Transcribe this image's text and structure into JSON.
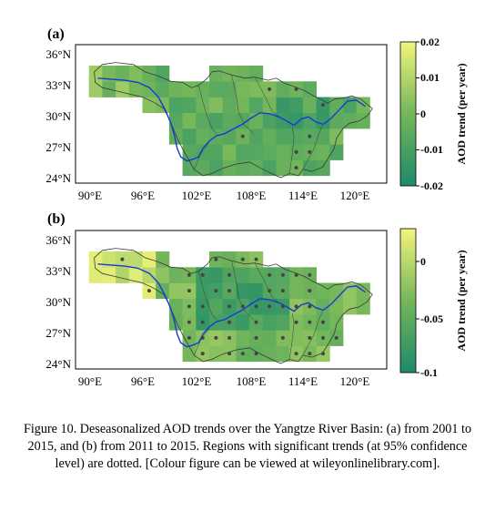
{
  "figure": {
    "caption": "Figure 10. Deseasonalized AOD trends over the Yangtze River Basin: (a) from 2001 to 2015, and (b) from 2011 to 2015. Regions with significant trends (at 95% confidence level) are dotted. [Colour figure can be viewed at wileyonlinelibrary.com]."
  },
  "colors": {
    "scale_low": "#1c8a6a",
    "scale_mid": "#74b65a",
    "scale_high": "#f2f57a",
    "river": "#1a39d8",
    "boundary": "#3a3a3a",
    "dots": "#454545"
  },
  "panels": [
    {
      "label": "(a)",
      "lat_ticks": [
        "36°N",
        "33°N",
        "30°N",
        "27°N",
        "24°N"
      ],
      "lon_ticks": [
        "90°E",
        "96°E",
        "102°E",
        "108°E",
        "114°E",
        "120°E"
      ],
      "colorbar": {
        "title": "AOD trend (per year)",
        "ticks": [
          "0.02",
          "0.01",
          "0",
          "-0.01",
          "-0.02"
        ],
        "range": [
          -0.02,
          0.02
        ]
      },
      "typical_trend": -0.005,
      "significant_cells": "few, mostly around 107°E–114°E and the lower reaches"
    },
    {
      "label": "(b)",
      "lat_ticks": [
        "36°N",
        "33°N",
        "30°N",
        "27°N",
        "24°N"
      ],
      "lon_ticks": [
        "90°E",
        "96°E",
        "102°E",
        "108°E",
        "114°E",
        "120°E"
      ],
      "colorbar": {
        "title": "AOD trend (per year)",
        "ticks": [
          "0",
          "-0.05",
          "-0.1"
        ],
        "range": [
          -0.1,
          0.025
        ]
      },
      "typical_trend": -0.04,
      "significant_cells": "many, concentrated in the Sichuan Basin and middle reaches (103°E–115°E)"
    }
  ]
}
